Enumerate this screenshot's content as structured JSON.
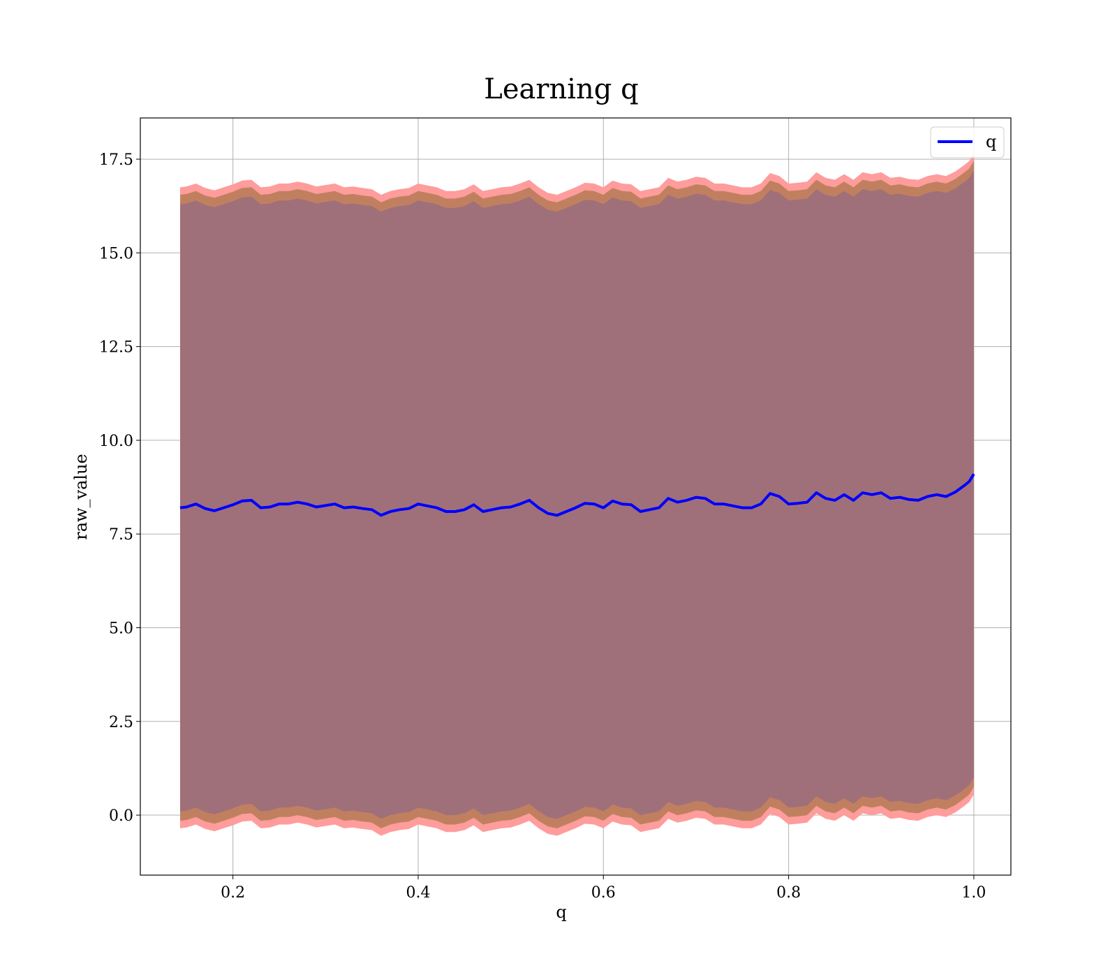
{
  "chart_data": {
    "type": "line",
    "title": "Learning q",
    "xlabel": "q",
    "ylabel": "raw_value",
    "xlim": [
      0.1,
      1.04
    ],
    "ylim": [
      -1.6,
      18.6
    ],
    "xticks": [
      0.2,
      0.4,
      0.6,
      0.8,
      1.0
    ],
    "xtick_labels": [
      "0.2",
      "0.4",
      "0.6",
      "0.8",
      "1.0"
    ],
    "yticks": [
      0.0,
      2.5,
      5.0,
      7.5,
      10.0,
      12.5,
      15.0,
      17.5
    ],
    "ytick_labels": [
      "0.0",
      "2.5",
      "5.0",
      "7.5",
      "10.0",
      "12.5",
      "15.0",
      "17.5"
    ],
    "grid": true,
    "legend": {
      "placement": "top-right",
      "entries": [
        "q"
      ]
    },
    "colors": {
      "line": "#0000ff",
      "outer_band": "#ff9c9c",
      "middle_band": "#c08060",
      "inner_band": "#a0707a",
      "grid": "#b0b0b0"
    },
    "series": [
      {
        "name": "q",
        "x": [
          0.143,
          0.15,
          0.16,
          0.17,
          0.18,
          0.19,
          0.2,
          0.21,
          0.22,
          0.23,
          0.24,
          0.25,
          0.26,
          0.27,
          0.28,
          0.29,
          0.3,
          0.31,
          0.32,
          0.33,
          0.34,
          0.35,
          0.36,
          0.37,
          0.38,
          0.39,
          0.4,
          0.41,
          0.42,
          0.43,
          0.44,
          0.45,
          0.46,
          0.47,
          0.48,
          0.49,
          0.5,
          0.51,
          0.52,
          0.53,
          0.54,
          0.55,
          0.56,
          0.57,
          0.58,
          0.59,
          0.6,
          0.61,
          0.62,
          0.63,
          0.64,
          0.65,
          0.66,
          0.67,
          0.68,
          0.69,
          0.7,
          0.71,
          0.72,
          0.73,
          0.74,
          0.75,
          0.76,
          0.77,
          0.78,
          0.79,
          0.8,
          0.81,
          0.82,
          0.83,
          0.84,
          0.85,
          0.86,
          0.87,
          0.88,
          0.89,
          0.9,
          0.91,
          0.92,
          0.93,
          0.94,
          0.95,
          0.96,
          0.97,
          0.98,
          0.99,
          0.995,
          1.0
        ],
        "y": [
          8.2,
          8.22,
          8.3,
          8.18,
          8.12,
          8.2,
          8.28,
          8.38,
          8.4,
          8.2,
          8.22,
          8.3,
          8.3,
          8.35,
          8.3,
          8.22,
          8.26,
          8.3,
          8.2,
          8.22,
          8.18,
          8.15,
          8.0,
          8.1,
          8.15,
          8.18,
          8.3,
          8.25,
          8.2,
          8.1,
          8.1,
          8.15,
          8.28,
          8.1,
          8.15,
          8.2,
          8.22,
          8.3,
          8.4,
          8.2,
          8.05,
          8.0,
          8.1,
          8.2,
          8.32,
          8.3,
          8.2,
          8.38,
          8.3,
          8.28,
          8.1,
          8.15,
          8.2,
          8.45,
          8.35,
          8.4,
          8.48,
          8.45,
          8.3,
          8.3,
          8.25,
          8.2,
          8.2,
          8.3,
          8.58,
          8.5,
          8.3,
          8.32,
          8.35,
          8.6,
          8.45,
          8.4,
          8.55,
          8.4,
          8.6,
          8.55,
          8.6,
          8.45,
          8.48,
          8.42,
          8.4,
          8.5,
          8.55,
          8.5,
          8.62,
          8.8,
          8.9,
          9.1
        ]
      }
    ],
    "bands": [
      {
        "label": "outer",
        "half_width": 8.55
      },
      {
        "label": "middle",
        "half_width": 8.35
      },
      {
        "label": "inner",
        "half_width": 8.1
      }
    ]
  }
}
